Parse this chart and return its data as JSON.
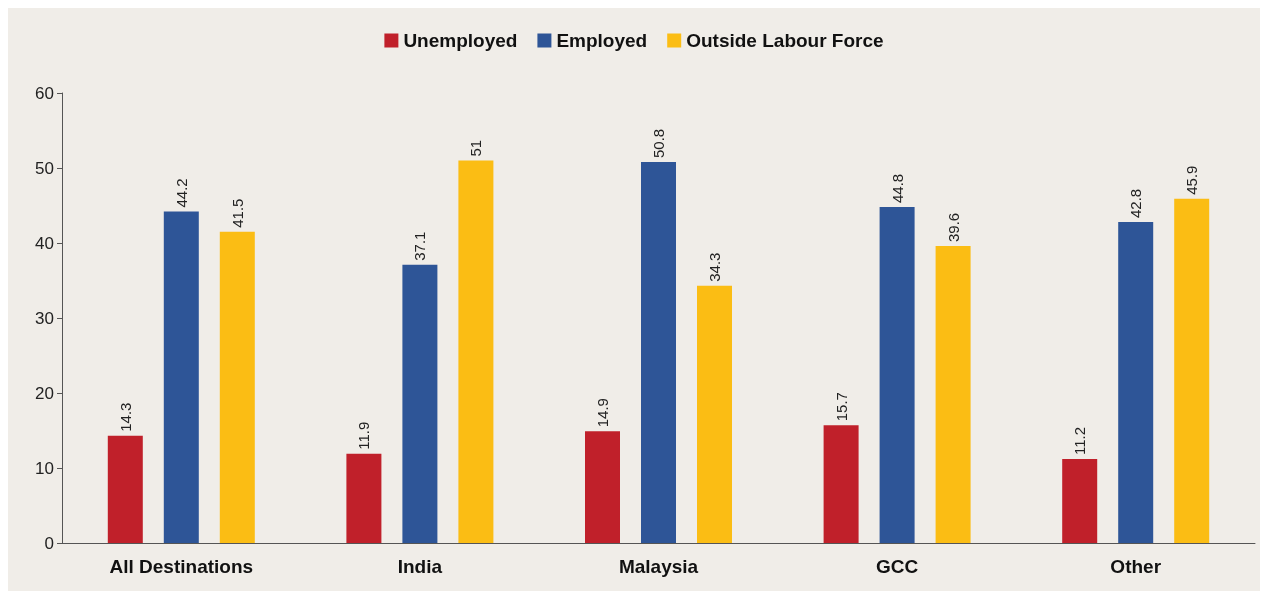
{
  "chart_data": {
    "type": "bar",
    "categories": [
      "All Destinations",
      "India",
      "Malaysia",
      "GCC",
      "Other"
    ],
    "series": [
      {
        "name": "Unemployed",
        "color": "#c0202a",
        "values": [
          14.3,
          11.9,
          14.9,
          15.7,
          11.2
        ]
      },
      {
        "name": "Employed",
        "color": "#2e5597",
        "values": [
          44.2,
          37.1,
          50.8,
          44.8,
          42.8
        ]
      },
      {
        "name": "Outside Labour Force",
        "color": "#fbbd14",
        "values": [
          41.5,
          51,
          34.3,
          39.6,
          45.9
        ]
      }
    ],
    "ylim": [
      0,
      60
    ],
    "yticks": [
      0,
      10,
      20,
      30,
      40,
      50,
      60
    ],
    "grid": false,
    "legend": "top",
    "data_labels": true
  }
}
